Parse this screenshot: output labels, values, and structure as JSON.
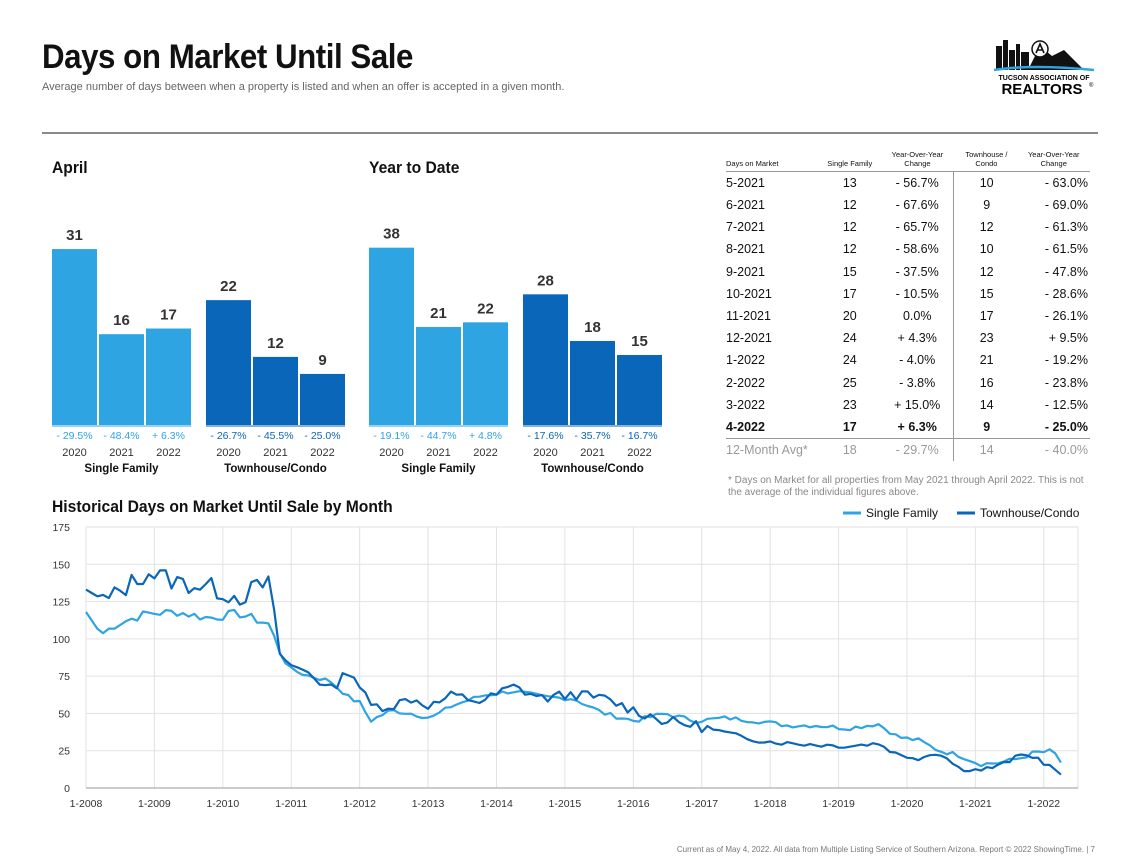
{
  "header": {
    "title": "Days on Market Until Sale",
    "subtitle": "Average number of days between when a property is listed and when an offer is accepted in a given month."
  },
  "logo": {
    "line1": "TUCSON ASSOCIATION OF",
    "line2": "REALTORS",
    "mark": "®"
  },
  "colors": {
    "single_family": "#2ea4e3",
    "townhouse": "#0a66b8",
    "rule": "#8a8a8a"
  },
  "chart_data": [
    {
      "type": "bar",
      "title": "April",
      "groups": [
        {
          "name": "Single Family",
          "categories": [
            "2020",
            "2021",
            "2022"
          ],
          "values": [
            31,
            16,
            17
          ],
          "changes": [
            "- 29.5%",
            "- 48.4%",
            "+ 6.3%"
          ]
        },
        {
          "name": "Townhouse/Condo",
          "categories": [
            "2020",
            "2021",
            "2022"
          ],
          "values": [
            22,
            12,
            9
          ],
          "changes": [
            "- 26.7%",
            "- 45.5%",
            "- 25.0%"
          ]
        }
      ],
      "ylim": [
        0,
        37
      ]
    },
    {
      "type": "bar",
      "title": "Year to Date",
      "groups": [
        {
          "name": "Single Family",
          "categories": [
            "2020",
            "2021",
            "2022"
          ],
          "values": [
            38,
            21,
            22
          ],
          "changes": [
            "- 19.1%",
            "- 44.7%",
            "+ 4.8%"
          ]
        },
        {
          "name": "Townhouse/Condo",
          "categories": [
            "2020",
            "2021",
            "2022"
          ],
          "values": [
            28,
            18,
            15
          ],
          "changes": [
            "- 17.6%",
            "- 35.7%",
            "- 16.7%"
          ]
        }
      ],
      "ylim": [
        0,
        45
      ]
    },
    {
      "type": "table",
      "columns": [
        "Days on Market",
        "Single Family",
        "Year-Over-Year Change",
        "Townhouse / Condo",
        "Year-Over-Year Change"
      ],
      "rows": [
        [
          "5-2021",
          "13",
          "- 56.7%",
          "10",
          "- 63.0%"
        ],
        [
          "6-2021",
          "12",
          "- 67.6%",
          "9",
          "- 69.0%"
        ],
        [
          "7-2021",
          "12",
          "- 65.7%",
          "12",
          "- 61.3%"
        ],
        [
          "8-2021",
          "12",
          "- 58.6%",
          "10",
          "- 61.5%"
        ],
        [
          "9-2021",
          "15",
          "- 37.5%",
          "12",
          "- 47.8%"
        ],
        [
          "10-2021",
          "17",
          "- 10.5%",
          "15",
          "- 28.6%"
        ],
        [
          "11-2021",
          "20",
          "0.0%",
          "17",
          "- 26.1%"
        ],
        [
          "12-2021",
          "24",
          "+ 4.3%",
          "23",
          "+ 9.5%"
        ],
        [
          "1-2022",
          "24",
          "- 4.0%",
          "21",
          "- 19.2%"
        ],
        [
          "2-2022",
          "25",
          "- 3.8%",
          "16",
          "- 23.8%"
        ],
        [
          "3-2022",
          "23",
          "+ 15.0%",
          "14",
          "- 12.5%"
        ],
        [
          "4-2022",
          "17",
          "+ 6.3%",
          "9",
          "- 25.0%"
        ]
      ],
      "avg_row": [
        "12-Month Avg*",
        "18",
        "- 29.7%",
        "14",
        "- 40.0%"
      ],
      "footnote": "* Days on Market for all properties from May 2021 through April 2022. This is not the average of the individual figures above."
    },
    {
      "type": "line",
      "title": "Historical Days on Market Until Sale by Month",
      "x_ticks": [
        "1-2008",
        "1-2009",
        "1-2010",
        "1-2011",
        "1-2012",
        "1-2013",
        "1-2014",
        "1-2015",
        "1-2016",
        "1-2017",
        "1-2018",
        "1-2019",
        "1-2020",
        "1-2021",
        "1-2022"
      ],
      "y_ticks": [
        0,
        25,
        50,
        75,
        100,
        125,
        150,
        175
      ],
      "ylim": [
        0,
        175
      ],
      "grid": true,
      "legend": "top-right",
      "x_start": "1-2008",
      "x_end": "4-2022",
      "series": [
        {
          "name": "Single Family",
          "anchors": [
            [
              0,
              118
            ],
            [
              3,
              103
            ],
            [
              6,
              110
            ],
            [
              12,
              117
            ],
            [
              18,
              118
            ],
            [
              24,
              114
            ],
            [
              30,
              117
            ],
            [
              36,
              110
            ],
            [
              38,
              93
            ],
            [
              40,
              80
            ],
            [
              44,
              75
            ],
            [
              48,
              72
            ],
            [
              52,
              60
            ],
            [
              54,
              57
            ],
            [
              56,
              45
            ],
            [
              60,
              52
            ],
            [
              64,
              50
            ],
            [
              68,
              47
            ],
            [
              72,
              55
            ],
            [
              78,
              62
            ],
            [
              84,
              65
            ],
            [
              90,
              61
            ],
            [
              96,
              60
            ],
            [
              102,
              50
            ],
            [
              108,
              45
            ],
            [
              114,
              50
            ],
            [
              120,
              45
            ],
            [
              126,
              47
            ],
            [
              132,
              45
            ],
            [
              138,
              42
            ],
            [
              144,
              42
            ],
            [
              150,
              40
            ],
            [
              156,
              43
            ],
            [
              160,
              34
            ],
            [
              164,
              32
            ],
            [
              168,
              25
            ],
            [
              172,
              22
            ],
            [
              176,
              16
            ],
            [
              180,
              17
            ],
            [
              184,
              20
            ],
            [
              187,
              24
            ],
            [
              189,
              24
            ],
            [
              190,
              25
            ],
            [
              191,
              23
            ],
            [
              192,
              17
            ]
          ]
        },
        {
          "name": "Townhouse/Condo",
          "anchors": [
            [
              0,
              133
            ],
            [
              4,
              125
            ],
            [
              8,
              135
            ],
            [
              12,
              145
            ],
            [
              18,
              138
            ],
            [
              24,
              135
            ],
            [
              30,
              128
            ],
            [
              36,
              138
            ],
            [
              38,
              92
            ],
            [
              40,
              82
            ],
            [
              44,
              78
            ],
            [
              48,
              65
            ],
            [
              52,
              80
            ],
            [
              56,
              55
            ],
            [
              60,
              55
            ],
            [
              64,
              60
            ],
            [
              68,
              55
            ],
            [
              72,
              62
            ],
            [
              78,
              58
            ],
            [
              84,
              68
            ],
            [
              90,
              60
            ],
            [
              96,
              63
            ],
            [
              102,
              60
            ],
            [
              108,
              52
            ],
            [
              114,
              45
            ],
            [
              120,
              42
            ],
            [
              126,
              37
            ],
            [
              132,
              32
            ],
            [
              138,
              30
            ],
            [
              144,
              29
            ],
            [
              150,
              28
            ],
            [
              156,
              30
            ],
            [
              160,
              22
            ],
            [
              164,
              20
            ],
            [
              168,
              24
            ],
            [
              172,
              13
            ],
            [
              176,
              12
            ],
            [
              180,
              15
            ],
            [
              184,
              22
            ],
            [
              187,
              21
            ],
            [
              189,
              16
            ],
            [
              190,
              14
            ],
            [
              191,
              12
            ],
            [
              192,
              9
            ]
          ]
        }
      ]
    }
  ],
  "sections": {
    "april": "April",
    "ytd": "Year to Date",
    "historical": "Historical Days on Market Until Sale by Month"
  },
  "footer": "Current as of May 4, 2022. All data from Multiple Listing Service of Southern Arizona. Report © 2022 ShowingTime.  |  7"
}
